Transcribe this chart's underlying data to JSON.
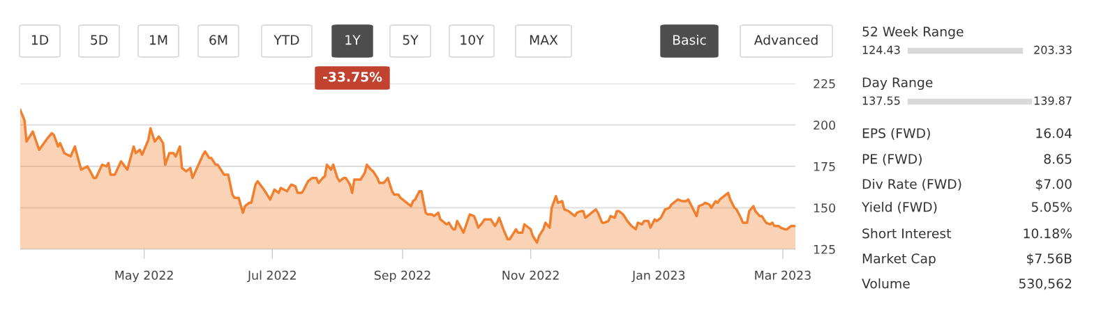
{
  "chart_data": [
    {
      "type": "area",
      "x": [
        "2022-03-03",
        "2022-03-05",
        "2022-03-06",
        "2022-03-09",
        "2022-03-12",
        "2022-03-16",
        "2022-03-18",
        "2022-03-19",
        "2022-03-21",
        "2022-03-22",
        "2022-03-24",
        "2022-03-27",
        "2022-03-29",
        "2022-04-01",
        "2022-04-04",
        "2022-04-07",
        "2022-04-08",
        "2022-04-11",
        "2022-04-13",
        "2022-04-14",
        "2022-04-15",
        "2022-04-17",
        "2022-04-20",
        "2022-04-23",
        "2022-04-26",
        "2022-04-27",
        "2022-04-29",
        "2022-04-30",
        "2022-05-03",
        "2022-05-04",
        "2022-05-06",
        "2022-05-08",
        "2022-05-10",
        "2022-05-11",
        "2022-05-13",
        "2022-05-15",
        "2022-05-16",
        "2022-05-18",
        "2022-05-19",
        "2022-05-21",
        "2022-05-23",
        "2022-05-24",
        "2022-05-29",
        "2022-05-30",
        "2022-06-01",
        "2022-06-02",
        "2022-06-04",
        "2022-06-05",
        "2022-06-08",
        "2022-06-10",
        "2022-06-12",
        "2022-06-13",
        "2022-06-15",
        "2022-06-17",
        "2022-06-18",
        "2022-06-20",
        "2022-06-21",
        "2022-06-23",
        "2022-06-24",
        "2022-06-27",
        "2022-06-30",
        "2022-07-02",
        "2022-07-04",
        "2022-07-05",
        "2022-07-08",
        "2022-07-10",
        "2022-07-12",
        "2022-07-13",
        "2022-07-15",
        "2022-07-16",
        "2022-07-18",
        "2022-07-20",
        "2022-07-22",
        "2022-07-23",
        "2022-07-25",
        "2022-07-26",
        "2022-07-27",
        "2022-07-29",
        "2022-07-30",
        "2022-08-01",
        "2022-08-02",
        "2022-08-04",
        "2022-08-05",
        "2022-08-07",
        "2022-08-08",
        "2022-08-09",
        "2022-08-12",
        "2022-08-14",
        "2022-08-15",
        "2022-08-17",
        "2022-08-18",
        "2022-08-20",
        "2022-08-21",
        "2022-08-23",
        "2022-08-25",
        "2022-08-27",
        "2022-08-28",
        "2022-08-30",
        "2022-08-31",
        "2022-09-03",
        "2022-09-05",
        "2022-09-06",
        "2022-09-07",
        "2022-09-09",
        "2022-09-10",
        "2022-09-12",
        "2022-09-13",
        "2022-09-15",
        "2022-09-16",
        "2022-09-18",
        "2022-09-19",
        "2022-09-20",
        "2022-09-22",
        "2022-09-23",
        "2022-09-25",
        "2022-09-26",
        "2022-09-27",
        "2022-09-30",
        "2022-10-03",
        "2022-10-05",
        "2022-10-06",
        "2022-10-07",
        "2022-10-09",
        "2022-10-10",
        "2022-10-13",
        "2022-10-15",
        "2022-10-16",
        "2022-10-17",
        "2022-10-19",
        "2022-10-21",
        "2022-10-22",
        "2022-10-23",
        "2022-10-25",
        "2022-10-26",
        "2022-10-28",
        "2022-10-29",
        "2022-10-31",
        "2022-11-01",
        "2022-11-02",
        "2022-11-04",
        "2022-11-05",
        "2022-11-07",
        "2022-11-08",
        "2022-11-10",
        "2022-11-11",
        "2022-11-13",
        "2022-11-14",
        "2022-11-16",
        "2022-11-17",
        "2022-11-19",
        "2022-11-20",
        "2022-11-22",
        "2022-11-23",
        "2022-11-25",
        "2022-11-26",
        "2022-11-27",
        "2022-11-29",
        "2022-11-30",
        "2022-12-02",
        "2022-12-03",
        "2022-12-05",
        "2022-12-06",
        "2022-12-08",
        "2022-12-09",
        "2022-12-11",
        "2022-12-12",
        "2022-12-13",
        "2022-12-15",
        "2022-12-17",
        "2022-12-19",
        "2022-12-21",
        "2022-12-22",
        "2022-12-24",
        "2022-12-25",
        "2022-12-27",
        "2022-12-28",
        "2022-12-30",
        "2022-12-31",
        "2023-01-02",
        "2023-01-04",
        "2023-01-06",
        "2023-01-07",
        "2023-01-10",
        "2023-01-12",
        "2023-01-14",
        "2023-01-15",
        "2023-01-19",
        "2023-01-20",
        "2023-01-22",
        "2023-01-23",
        "2023-01-25",
        "2023-01-26",
        "2023-01-28",
        "2023-01-29",
        "2023-01-30",
        "2023-02-01",
        "2023-02-03",
        "2023-02-04",
        "2023-02-06",
        "2023-02-07",
        "2023-02-09",
        "2023-02-10",
        "2023-02-12",
        "2023-02-13",
        "2023-02-15",
        "2023-02-16",
        "2023-02-18",
        "2023-02-19",
        "2023-02-21",
        "2023-02-23",
        "2023-02-24",
        "2023-02-25",
        "2023-02-27",
        "2023-02-28",
        "2023-03-02",
        "2023-03-03",
        "2023-03-05",
        "2023-03-07"
      ],
      "series": [
        {
          "color": "#f07f2e",
          "values": [
            209,
            203,
            190,
            196,
            185,
            192,
            195,
            194,
            187,
            189,
            183,
            181,
            187,
            173,
            175,
            168,
            168,
            176,
            175,
            177,
            170,
            170,
            178,
            173,
            187,
            183,
            185,
            182,
            191,
            198,
            190,
            193,
            189,
            176,
            183,
            183,
            181,
            187,
            174,
            172,
            174,
            168,
            182,
            184,
            180,
            180,
            176,
            176,
            170,
            170,
            158,
            156,
            156,
            147,
            151,
            153,
            153,
            164,
            166,
            161,
            155,
            161,
            159,
            162,
            160,
            164,
            163,
            159,
            159,
            161,
            166,
            168,
            168,
            165,
            168,
            169,
            176,
            173,
            176,
            168,
            166,
            168,
            168,
            164,
            159,
            167,
            167,
            171,
            176,
            173,
            172,
            168,
            165,
            165,
            168,
            160,
            158,
            158,
            156,
            153,
            151,
            154,
            155,
            160,
            160,
            147,
            146,
            146,
            145,
            147,
            143,
            142,
            140,
            141,
            137,
            137,
            142,
            135,
            146,
            145,
            142,
            138,
            141,
            143,
            143,
            139,
            141,
            144,
            137,
            131,
            131,
            133,
            137,
            135,
            135,
            140,
            138,
            137,
            133,
            129,
            133,
            137,
            141,
            138,
            150,
            157,
            153,
            154,
            149,
            148,
            147,
            145,
            147,
            148,
            148,
            144,
            146,
            147,
            149,
            147,
            141,
            141,
            142,
            145,
            144,
            148,
            148,
            146,
            142,
            139,
            137,
            141,
            140,
            142,
            142,
            138,
            143,
            142,
            144,
            149,
            150,
            152,
            155,
            154,
            154,
            155,
            145,
            151,
            152,
            153,
            152,
            150,
            154,
            153,
            155,
            157,
            159,
            155,
            150,
            149,
            144,
            141,
            141,
            148,
            151,
            148,
            145,
            145,
            141,
            140,
            141,
            139,
            139,
            138,
            137,
            137,
            139,
            139
          ]
        }
      ],
      "xlim": [
        "2022-03-03",
        "2023-03-07"
      ],
      "xticks": [
        {
          "value": "2022-05-01",
          "label": "May 2022"
        },
        {
          "value": "2022-07-01",
          "label": "Jul 2022"
        },
        {
          "value": "2022-09-01",
          "label": "Sep 2022"
        },
        {
          "value": "2022-11-01",
          "label": "Nov 2022"
        },
        {
          "value": "2023-01-01",
          "label": "Jan 2023"
        },
        {
          "value": "2023-03-01",
          "label": "Mar 2023"
        }
      ],
      "ylim": [
        125,
        225
      ],
      "yticks": [
        125,
        150,
        175,
        200,
        225
      ],
      "grid": "y",
      "annotations": [
        "1D",
        "5D",
        "1M",
        "6M",
        "YTD",
        "1Y",
        "5Y",
        "10Y",
        "MAX",
        "Basic",
        "Advanced",
        "-33.75%"
      ]
    },
    {
      "type": "other",
      "annotations": [
        "52 Week Range",
        "124.43",
        "203.33",
        "Day Range",
        "137.55",
        "139.87",
        "EPS (FWD)",
        "16.04",
        "PE (FWD)",
        "8.65",
        "Div Rate (FWD)",
        "$7.00",
        "Yield (FWD)",
        "5.05%",
        "Short Interest",
        "10.18%",
        "Market Cap",
        "$7.56B",
        "Volume",
        "530,562"
      ]
    }
  ]
}
